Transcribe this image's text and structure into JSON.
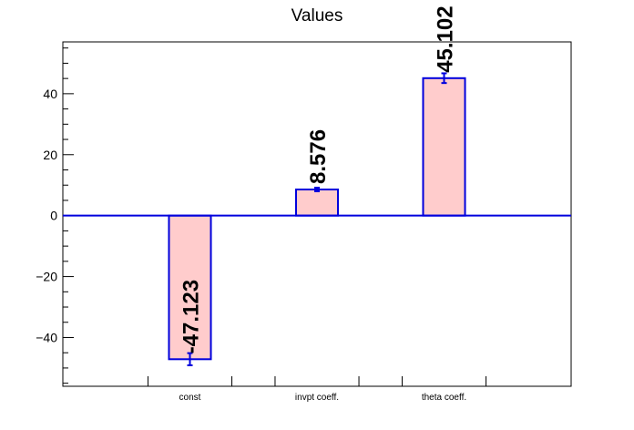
{
  "chart_data": {
    "type": "bar",
    "title": "Values",
    "xlabel": "",
    "ylabel": "",
    "categories": [
      "const",
      "invpt coeff.",
      "theta coeff."
    ],
    "series": [
      {
        "values": [
          -47.123,
          8.576,
          45.102
        ],
        "errors": [
          2.0,
          0.6,
          1.6
        ]
      }
    ],
    "data_labels": [
      "-47.123",
      "8.576",
      "45.102"
    ],
    "ylim": [
      -56,
      57
    ],
    "yticks": [
      -40,
      -20,
      0,
      20,
      40
    ],
    "ytick_labels": [
      "−40",
      "−20",
      "0",
      "20",
      "40"
    ],
    "grid": false,
    "legend": "none",
    "colors": {
      "bar_fill": "#ffcccc",
      "bar_edge": "#0000dd",
      "zero_line": "#0000dd",
      "axis": "#000000"
    }
  }
}
